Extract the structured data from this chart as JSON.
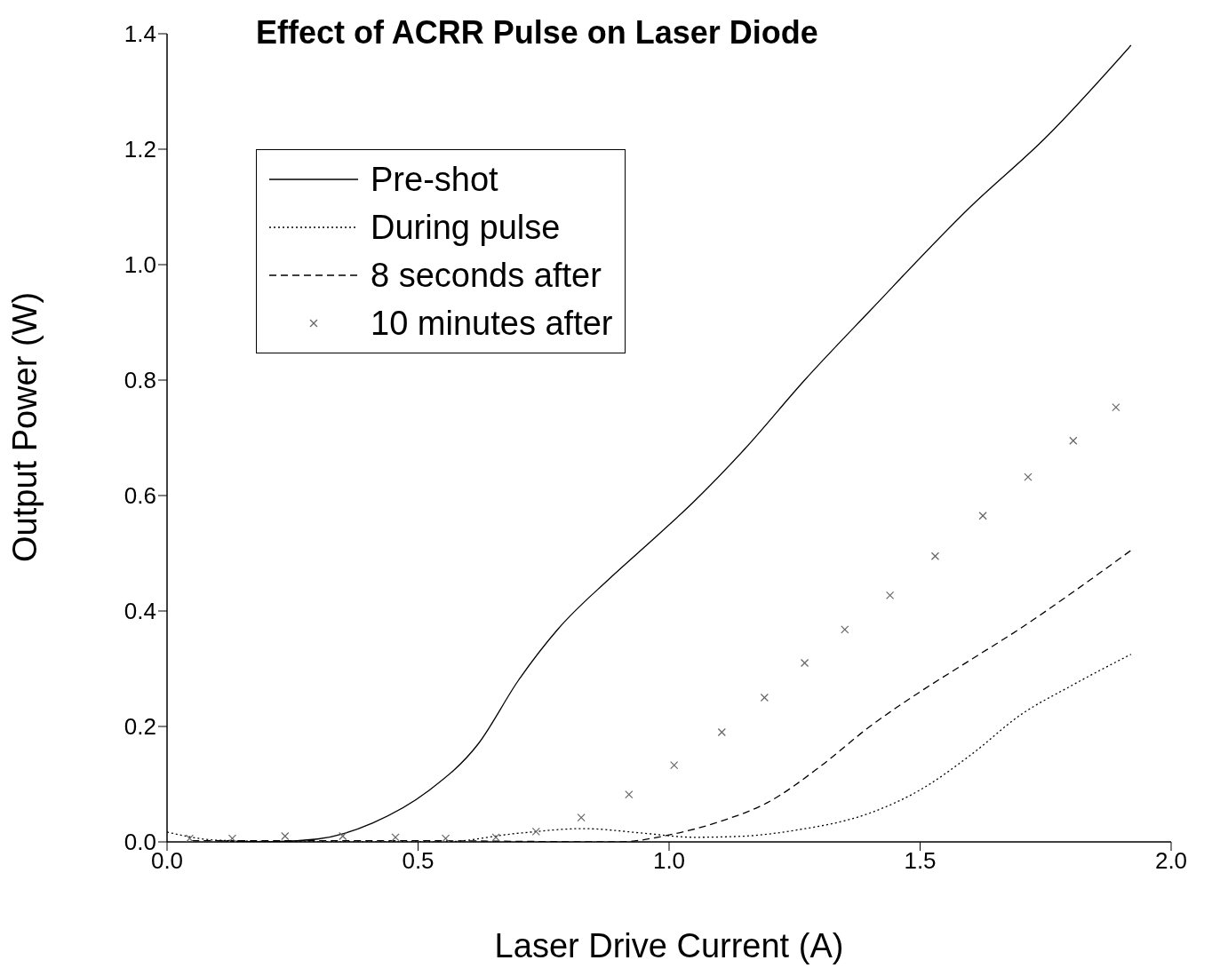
{
  "chart_data": {
    "type": "line",
    "title": "Effect of ACRR Pulse on Laser Diode",
    "xlabel": "Laser Drive Current (A)",
    "ylabel": "Output Power (W)",
    "xlim": [
      0,
      2
    ],
    "xticks": [
      {
        "value": 0,
        "label": "0.0"
      },
      {
        "value": 0.5,
        "label": "0.5"
      },
      {
        "value": 1,
        "label": "1.0"
      },
      {
        "value": 1.5,
        "label": "1.5"
      },
      {
        "value": 2,
        "label": "2.0"
      }
    ],
    "ylim": [
      0,
      1.4
    ],
    "yticks": [
      {
        "value": 0,
        "label": "0.0"
      },
      {
        "value": 0.2,
        "label": "0.2"
      },
      {
        "value": 0.4,
        "label": "0.4"
      },
      {
        "value": 0.6,
        "label": "0.6"
      },
      {
        "value": 0.8,
        "label": "0.8"
      },
      {
        "value": 1,
        "label": "1.0"
      },
      {
        "value": 1.2,
        "label": "1.2"
      },
      {
        "value": 1.4,
        "label": "1.4"
      }
    ],
    "grid": false,
    "legend": "top left",
    "marker": "none",
    "series": [
      {
        "name": "Pre-shot",
        "type": "line",
        "line_style": "solid",
        "color": "#000000",
        "x": [
          0.1,
          0.2,
          0.3,
          0.41,
          0.52,
          0.62,
          0.7,
          0.78,
          0.88,
          0.95,
          1.05,
          1.15,
          1.27,
          1.4,
          1.6,
          1.75,
          1.92
        ],
        "values": [
          0.002,
          0.0,
          0.005,
          0.033,
          0.088,
          0.17,
          0.28,
          0.37,
          0.455,
          0.51,
          0.59,
          0.68,
          0.8,
          0.92,
          1.1,
          1.22,
          1.38
        ]
      },
      {
        "name": "During pulse",
        "type": "line",
        "line_style": "dotted",
        "color": "#000000",
        "x": [
          0,
          0.1,
          0.3,
          0.55,
          0.7,
          0.83,
          0.95,
          1.05,
          1.15,
          1.25,
          1.4,
          1.5,
          1.6,
          1.7,
          1.8,
          1.92
        ],
        "values": [
          0.017,
          0.003,
          0.0,
          0.0,
          0.015,
          0.023,
          0.015,
          0.008,
          0.01,
          0.02,
          0.05,
          0.09,
          0.15,
          0.22,
          0.27,
          0.325
        ]
      },
      {
        "name": "8 seconds after",
        "type": "line",
        "line_style": "dashed",
        "color": "#000000",
        "x": [
          0.05,
          0.5,
          0.9,
          1.0,
          1.1,
          1.2,
          1.3,
          1.4,
          1.5,
          1.6,
          1.7,
          1.8,
          1.92
        ],
        "values": [
          0.002,
          0.002,
          0.0,
          0.012,
          0.035,
          0.07,
          0.13,
          0.2,
          0.26,
          0.315,
          0.37,
          0.43,
          0.505
        ]
      },
      {
        "name": "10 minutes after",
        "type": "scatter",
        "marker": "cross",
        "color": "#666666",
        "x": [
          0.045,
          0.13,
          0.235,
          0.35,
          0.455,
          0.555,
          0.655,
          0.735,
          0.825,
          0.92,
          1.01,
          1.105,
          1.19,
          1.27,
          1.35,
          1.44,
          1.53,
          1.625,
          1.715,
          1.805,
          1.89
        ],
        "values": [
          0.006,
          0.006,
          0.01,
          0.01,
          0.008,
          0.006,
          0.008,
          0.018,
          0.042,
          0.082,
          0.133,
          0.19,
          0.25,
          0.31,
          0.368,
          0.427,
          0.495,
          0.565,
          0.632,
          0.695,
          0.753
        ]
      }
    ]
  }
}
